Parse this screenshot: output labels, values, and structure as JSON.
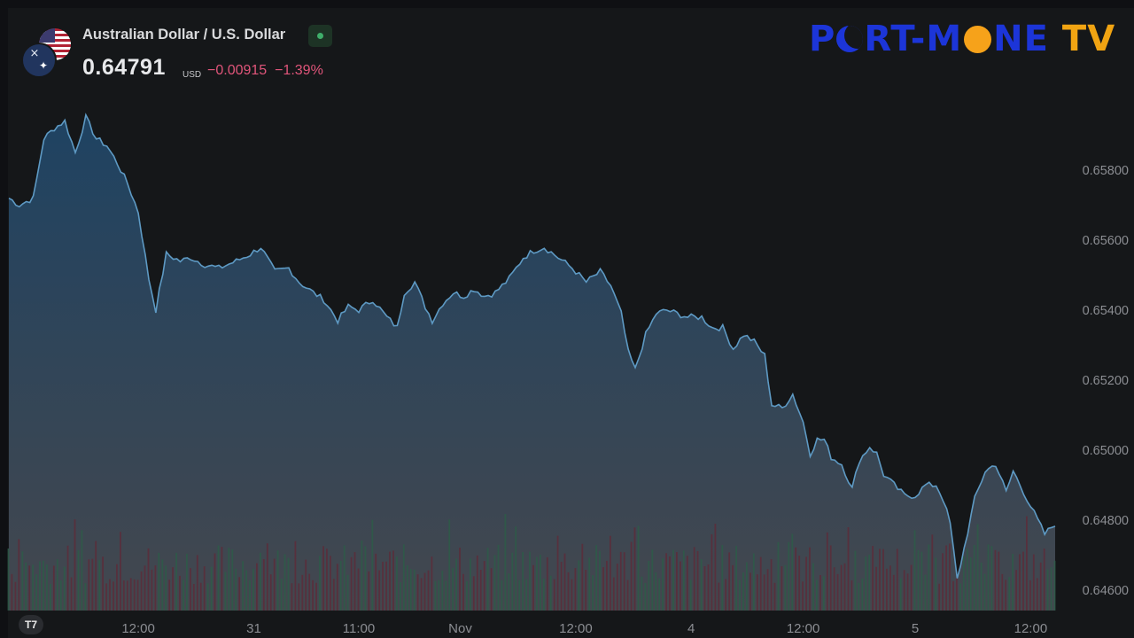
{
  "header": {
    "title": "Australian Dollar / U.S. Dollar",
    "price": "0.64791",
    "currency": "USD",
    "change": "−0.00915",
    "change_pct": "−1.39%"
  },
  "logo": {
    "text_prefix": "P",
    "text_mid": "RT-M",
    "text_suffix": "NE",
    "text_tv": "TV"
  },
  "tv_logo": "T7",
  "colors": {
    "line": "#5e9ac4",
    "area_top": "#1f4566",
    "area_bottom": "#464a51",
    "volume_up": "#2f5a48",
    "volume_down": "#5a2e3b",
    "axis_text": "#8b8d92",
    "change": "#e0557a"
  },
  "chart_data": {
    "type": "area",
    "title": "Australian Dollar / U.S. Dollar",
    "ylim": [
      0.6458,
      0.6604
    ],
    "y_ticks": [
      "0.65800",
      "0.65600",
      "0.65400",
      "0.65200",
      "0.65000",
      "0.64800",
      "0.64600"
    ],
    "y_tick_values": [
      0.658,
      0.656,
      0.654,
      0.652,
      0.65,
      0.648,
      0.646
    ],
    "x_ticks": [
      "12:00",
      "31",
      "11:00",
      "Nov",
      "12:00",
      "4",
      "12:00",
      "5",
      "12:00"
    ],
    "x_tick_index": [
      37,
      70,
      100,
      129,
      162,
      195,
      227,
      259,
      292
    ],
    "x_count": 300,
    "series": [
      {
        "kind": "line",
        "anchors": [
          [
            0,
            0.6572
          ],
          [
            3,
            0.657
          ],
          [
            7,
            0.6572
          ],
          [
            10,
            0.6589
          ],
          [
            13,
            0.6592
          ],
          [
            16,
            0.6594
          ],
          [
            19,
            0.6585
          ],
          [
            22,
            0.6595
          ],
          [
            25,
            0.6589
          ],
          [
            28,
            0.6587
          ],
          [
            31,
            0.6582
          ],
          [
            34,
            0.6576
          ],
          [
            37,
            0.6568
          ],
          [
            40,
            0.6549
          ],
          [
            42,
            0.654
          ],
          [
            45,
            0.6556
          ],
          [
            49,
            0.6554
          ],
          [
            52,
            0.6555
          ],
          [
            56,
            0.6553
          ],
          [
            60,
            0.6552
          ],
          [
            65,
            0.6554
          ],
          [
            69,
            0.6556
          ],
          [
            72,
            0.6558
          ],
          [
            76,
            0.6551
          ],
          [
            80,
            0.6552
          ],
          [
            83,
            0.6548
          ],
          [
            87,
            0.6545
          ],
          [
            90,
            0.6543
          ],
          [
            94,
            0.6537
          ],
          [
            97,
            0.6541
          ],
          [
            100,
            0.654
          ],
          [
            104,
            0.6543
          ],
          [
            108,
            0.6538
          ],
          [
            111,
            0.6535
          ],
          [
            113,
            0.6545
          ],
          [
            116,
            0.6548
          ],
          [
            119,
            0.6541
          ],
          [
            121,
            0.6537
          ],
          [
            124,
            0.6542
          ],
          [
            127,
            0.6545
          ],
          [
            130,
            0.6544
          ],
          [
            133,
            0.6546
          ],
          [
            136,
            0.6544
          ],
          [
            139,
            0.6545
          ],
          [
            143,
            0.6549
          ],
          [
            147,
            0.6555
          ],
          [
            150,
            0.6557
          ],
          [
            153,
            0.6558
          ],
          [
            157,
            0.6555
          ],
          [
            161,
            0.6552
          ],
          [
            165,
            0.6548
          ],
          [
            169,
            0.6551
          ],
          [
            172,
            0.6547
          ],
          [
            175,
            0.6539
          ],
          [
            177,
            0.6528
          ],
          [
            179,
            0.6523
          ],
          [
            182,
            0.6533
          ],
          [
            185,
            0.6539
          ],
          [
            188,
            0.654
          ],
          [
            191,
            0.6539
          ],
          [
            194,
            0.6538
          ],
          [
            198,
            0.6538
          ],
          [
            201,
            0.6535
          ],
          [
            204,
            0.6535
          ],
          [
            207,
            0.6529
          ],
          [
            210,
            0.6533
          ],
          [
            213,
            0.6531
          ],
          [
            216,
            0.6527
          ],
          [
            218,
            0.6513
          ],
          [
            221,
            0.6512
          ],
          [
            224,
            0.6516
          ],
          [
            227,
            0.6508
          ],
          [
            229,
            0.6499
          ],
          [
            231,
            0.6503
          ],
          [
            233,
            0.6503
          ],
          [
            235,
            0.6498
          ],
          [
            238,
            0.6496
          ],
          [
            241,
            0.6489
          ],
          [
            243,
            0.6497
          ],
          [
            246,
            0.6501
          ],
          [
            248,
            0.6499
          ],
          [
            250,
            0.6493
          ],
          [
            253,
            0.649
          ],
          [
            256,
            0.6487
          ],
          [
            259,
            0.6487
          ],
          [
            262,
            0.649
          ],
          [
            265,
            0.649
          ],
          [
            267,
            0.6486
          ],
          [
            269,
            0.6479
          ],
          [
            271,
            0.6463
          ],
          [
            273,
            0.6472
          ],
          [
            276,
            0.6486
          ],
          [
            279,
            0.6494
          ],
          [
            282,
            0.6496
          ],
          [
            285,
            0.6488
          ],
          [
            287,
            0.6494
          ],
          [
            290,
            0.6488
          ],
          [
            293,
            0.6482
          ],
          [
            296,
            0.6476
          ],
          [
            299,
            0.6479
          ]
        ]
      },
      {
        "kind": "volume",
        "seed": 7
      }
    ]
  }
}
